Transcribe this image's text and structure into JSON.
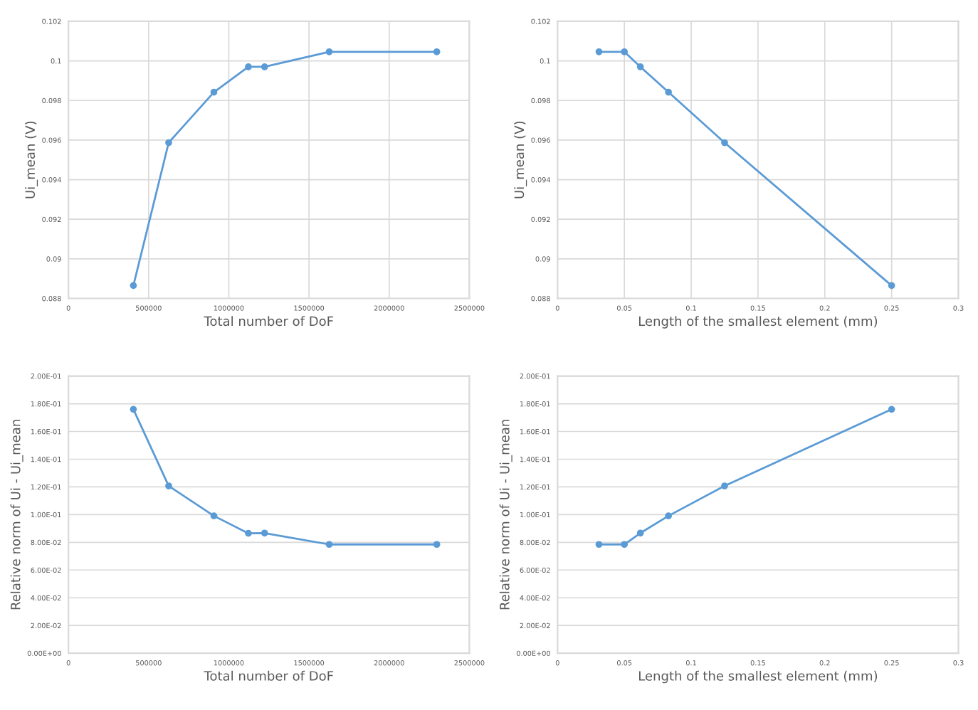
{
  "chart_data": [
    {
      "type": "line",
      "xlabel": "Total number of DoF",
      "ylabel": "Ui_mean (V)",
      "marker": "circle",
      "grid": true,
      "x": [
        405000,
        625000,
        907000,
        1122000,
        1223000,
        1626000,
        2297000
      ],
      "series": [
        {
          "color": "#5b9bd5",
          "values": [
            0.08865,
            0.09587,
            0.09842,
            0.0997,
            0.0997,
            0.10046,
            0.10046
          ]
        }
      ],
      "xlim": [
        0,
        2500000
      ],
      "xticks": [
        0,
        500000,
        1000000,
        1500000,
        2000000,
        2500000
      ],
      "ylim": [
        0.088,
        0.102
      ],
      "yticks": [
        0.088,
        0.09,
        0.092,
        0.094,
        0.096,
        0.098,
        0.1,
        0.102
      ]
    },
    {
      "type": "line",
      "xlabel": "Length of the smallest element (mm)",
      "ylabel": "Ui_mean (V)",
      "marker": "circle",
      "grid": true,
      "x": [
        0.031,
        0.05,
        0.062,
        0.083,
        0.125,
        0.25
      ],
      "series": [
        {
          "color": "#5b9bd5",
          "values": [
            0.10046,
            0.10046,
            0.0997,
            0.09842,
            0.09587,
            0.08865
          ]
        }
      ],
      "xlim": [
        0,
        0.3
      ],
      "xticks": [
        0,
        0.05,
        0.1,
        0.15,
        0.2,
        0.25,
        0.3
      ],
      "ylim": [
        0.088,
        0.102
      ],
      "yticks": [
        0.088,
        0.09,
        0.092,
        0.094,
        0.096,
        0.098,
        0.1,
        0.102
      ]
    },
    {
      "type": "line",
      "xlabel": "Total number of DoF",
      "ylabel": "Relative norm of Ui - Ui_mean",
      "marker": "circle",
      "grid": "y",
      "x": [
        405000,
        625000,
        907000,
        1122000,
        1223000,
        1626000,
        2297000
      ],
      "series": [
        {
          "color": "#5b9bd5",
          "values": [
            0.176,
            0.1207,
            0.0991,
            0.0865,
            0.0867,
            0.0785,
            0.0785
          ]
        }
      ],
      "xlim": [
        0,
        2500000
      ],
      "xticks": [
        0,
        500000,
        1000000,
        1500000,
        2000000,
        2500000
      ],
      "ylim": [
        0,
        0.2
      ],
      "yticks": [
        {
          "value": 0,
          "label": "0.00E+00"
        },
        {
          "value": 0.02,
          "label": "2.00E-02"
        },
        {
          "value": 0.04,
          "label": "4.00E-02"
        },
        {
          "value": 0.06,
          "label": "6.00E-02"
        },
        {
          "value": 0.08,
          "label": "8.00E-02"
        },
        {
          "value": 0.1,
          "label": "1.00E-01"
        },
        {
          "value": 0.12,
          "label": "1.20E-01"
        },
        {
          "value": 0.14,
          "label": "1.40E-01"
        },
        {
          "value": 0.16,
          "label": "1.60E-01"
        },
        {
          "value": 0.18,
          "label": "1.80E-01"
        },
        {
          "value": 0.2,
          "label": "2.00E-01"
        }
      ]
    },
    {
      "type": "line",
      "xlabel": "Length of the smallest element (mm)",
      "ylabel": "Relative norm of Ui - Ui_mean",
      "marker": "circle",
      "grid": "y",
      "x": [
        0.031,
        0.05,
        0.062,
        0.083,
        0.125,
        0.25
      ],
      "series": [
        {
          "color": "#5b9bd5",
          "values": [
            0.0785,
            0.0785,
            0.0867,
            0.0991,
            0.1207,
            0.176
          ]
        }
      ],
      "xlim": [
        0,
        0.3
      ],
      "xticks": [
        0,
        0.05,
        0.1,
        0.15,
        0.2,
        0.25,
        0.3
      ],
      "ylim": [
        0,
        0.2
      ],
      "yticks": [
        {
          "value": 0,
          "label": "0.00E+00"
        },
        {
          "value": 0.02,
          "label": "2.00E-02"
        },
        {
          "value": 0.04,
          "label": "4.00E-02"
        },
        {
          "value": 0.06,
          "label": "6.00E-02"
        },
        {
          "value": 0.08,
          "label": "8.00E-02"
        },
        {
          "value": 0.1,
          "label": "1.00E-01"
        },
        {
          "value": 0.12,
          "label": "1.20E-01"
        },
        {
          "value": 0.14,
          "label": "1.40E-01"
        },
        {
          "value": 0.16,
          "label": "1.60E-01"
        },
        {
          "value": 0.18,
          "label": "1.80E-01"
        },
        {
          "value": 0.2,
          "label": "2.00E-01"
        }
      ]
    }
  ]
}
